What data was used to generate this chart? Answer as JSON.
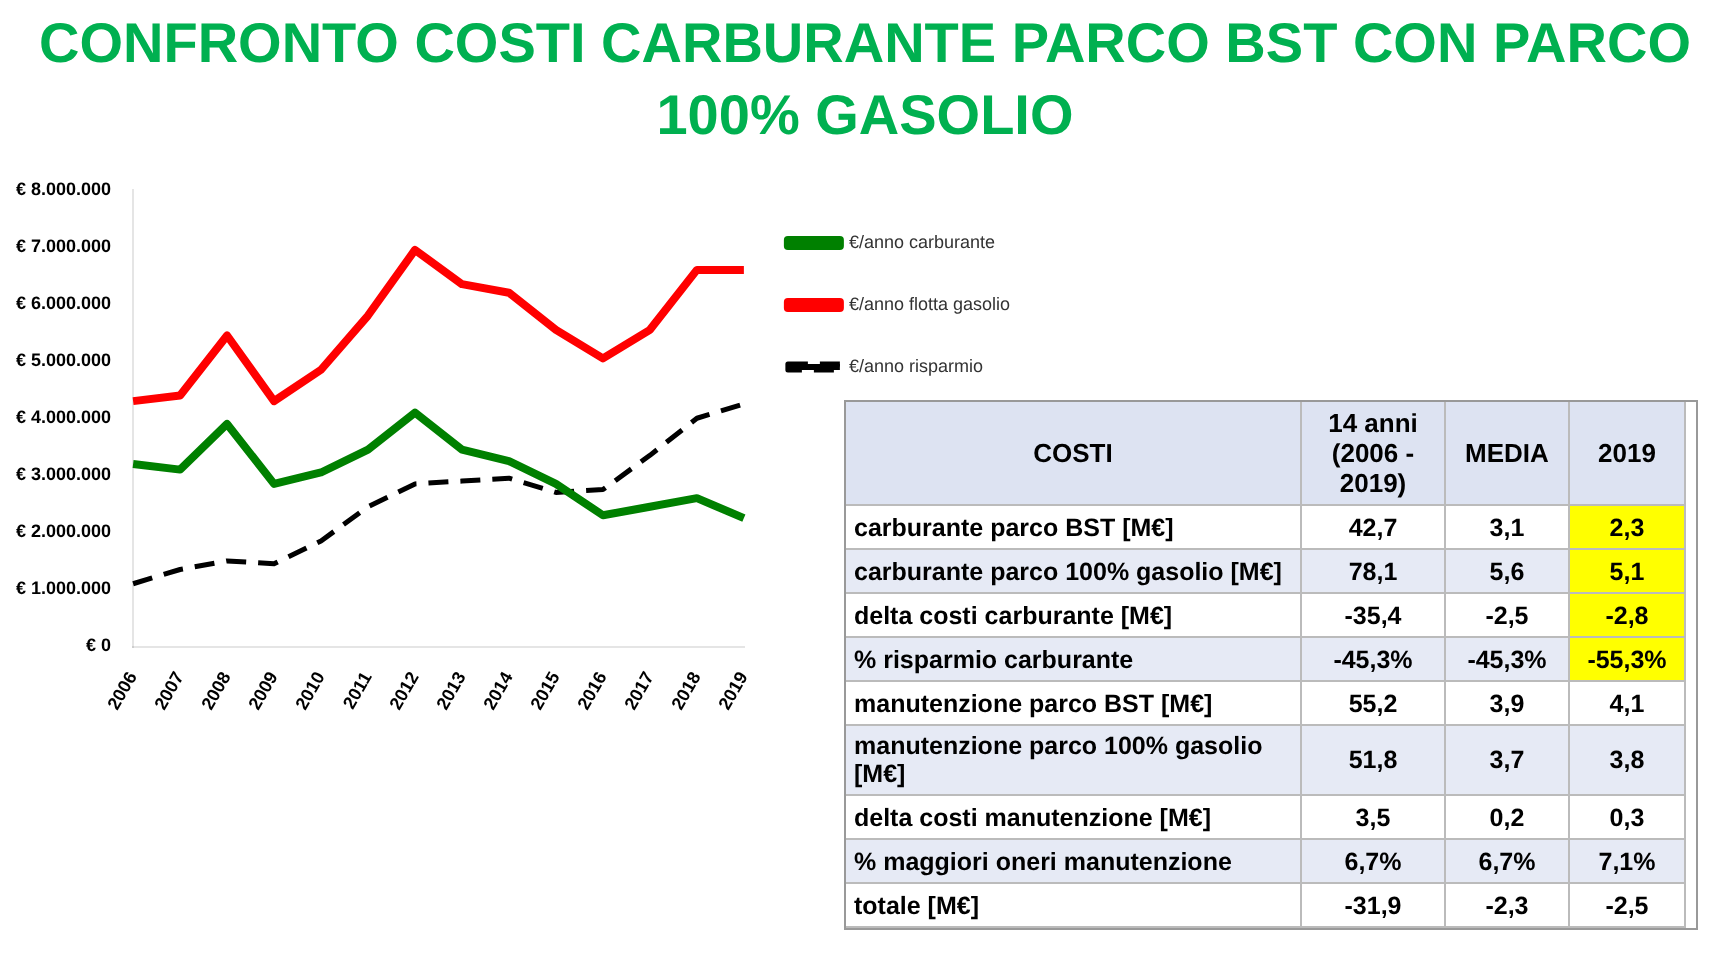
{
  "chart_data": [
    {
      "type": "line",
      "title": "CONFRONTO COSTI CARBURANTE PARCO BST CON PARCO 100% GASOLIO",
      "categories": [
        "2006",
        "2007",
        "2008",
        "2009",
        "2010",
        "2011",
        "2012",
        "2013",
        "2014",
        "2015",
        "2016",
        "2017",
        "2018",
        "2019"
      ],
      "series": [
        {
          "name": "€/anno carburante",
          "color": "#008000",
          "line_style": "solid",
          "values": [
            3200000,
            3100000,
            3900000,
            2850000,
            3050000,
            3450000,
            4100000,
            3450000,
            3250000,
            2850000,
            2300000,
            2450000,
            2600000,
            2250000
          ]
        },
        {
          "name": "€/anno flotta gasolio",
          "color": "#ff0000",
          "line_style": "solid",
          "values": [
            4300000,
            4400000,
            5450000,
            4300000,
            4850000,
            5800000,
            6950000,
            6350000,
            6200000,
            5550000,
            5050000,
            5550000,
            6600000,
            6600000
          ]
        },
        {
          "name": "€/anno risparmio",
          "color": "#000000",
          "line_style": "dashed",
          "values": [
            1100000,
            1350000,
            1500000,
            1450000,
            1850000,
            2450000,
            2850000,
            2900000,
            2950000,
            2700000,
            2750000,
            3350000,
            4000000,
            4250000
          ]
        }
      ],
      "ylim": [
        0,
        8000000
      ],
      "yticks": [
        {
          "value": 0,
          "label": "€ 0"
        },
        {
          "value": 1000000,
          "label": "€ 1.000.000"
        },
        {
          "value": 2000000,
          "label": "€ 2.000.000"
        },
        {
          "value": 3000000,
          "label": "€ 3.000.000"
        },
        {
          "value": 4000000,
          "label": "€ 4.000.000"
        },
        {
          "value": 5000000,
          "label": "€ 5.000.000"
        },
        {
          "value": 6000000,
          "label": "€ 6.000.000"
        },
        {
          "value": 7000000,
          "label": "€ 7.000.000"
        },
        {
          "value": 8000000,
          "label": "€ 8.000.000"
        }
      ],
      "grid": false,
      "legend": "right",
      "marker": "none"
    },
    {
      "type": "other",
      "annotations": [
        "COSTI",
        "14 anni (2006 - 2019)",
        "MEDIA",
        "2019",
        "carburante parco BST [M€]",
        "42,7",
        "3,1",
        "2,3",
        "carburante parco 100% gasolio [M€]",
        "78,1",
        "5,6",
        "5,1",
        "delta costi carburante [M€]",
        "-35,4",
        "-2,5",
        "-2,8",
        "% risparmio carburante",
        "-45,3%",
        "-45,3%",
        "-55,3%",
        "manutenzione parco BST [M€]",
        "55,2",
        "3,9",
        "4,1",
        "manutenzione parco 100% gasolio [M€]",
        "51,8",
        "3,7",
        "3,8",
        "delta costi manutenzione [M€]",
        "3,5",
        "0,2",
        "0,3",
        "% maggiori  oneri manutenzione",
        "6,7%",
        "6,7%",
        "7,1%",
        "totale [M€]",
        "-31,9",
        "-2,3",
        "-2,5"
      ]
    }
  ]
}
